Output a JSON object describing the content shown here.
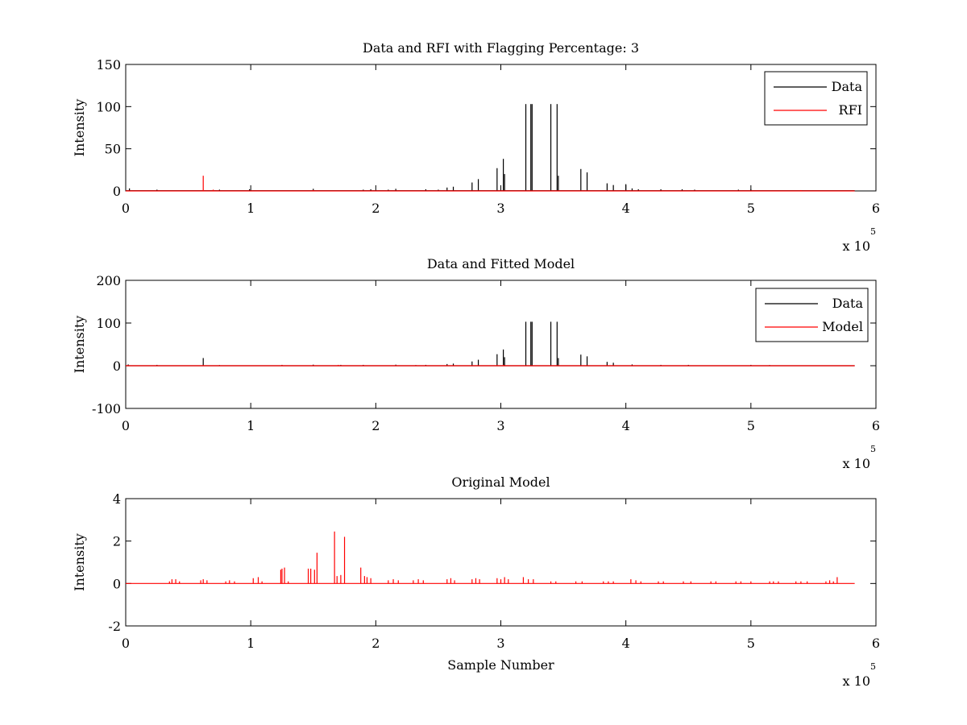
{
  "figure": {
    "background": "#ffffff"
  },
  "colors": {
    "data": "#000000",
    "rfi": "#ff0000",
    "model": "#ff0000"
  },
  "chart_data": [
    {
      "type": "line",
      "title": "Data and RFI with Flagging Percentage: 3",
      "xlabel": "",
      "ylabel": "Intensity",
      "xlim": [
        0,
        600000
      ],
      "ylim": [
        0,
        150
      ],
      "x_ticks": [
        0,
        1,
        2,
        3,
        4,
        5,
        6
      ],
      "y_ticks": [
        0,
        50,
        100,
        150
      ],
      "x_exponent_label": "x 10",
      "x_exponent_power": "5",
      "legend": {
        "position": "top-right",
        "entries": [
          "Data",
          "RFI"
        ]
      },
      "series": [
        {
          "name": "Data",
          "color": "#000000",
          "baseline": 0.3,
          "spikes": [
            [
              3000,
              3
            ],
            [
              25000,
              1.5
            ],
            [
              75000,
              1.5
            ],
            [
              99000,
              2
            ],
            [
              150000,
              2.5
            ],
            [
              190000,
              1.5
            ],
            [
              196000,
              2
            ],
            [
              210000,
              1.5
            ],
            [
              216000,
              2.5
            ],
            [
              240000,
              2
            ],
            [
              250000,
              1.5
            ],
            [
              257000,
              4
            ],
            [
              262000,
              5
            ],
            [
              277000,
              10
            ],
            [
              282000,
              14
            ],
            [
              297000,
              27
            ],
            [
              302000,
              38
            ],
            [
              303000,
              20
            ],
            [
              320000,
              103
            ],
            [
              324000,
              103
            ],
            [
              325000,
              103
            ],
            [
              340000,
              103
            ],
            [
              345000,
              103
            ],
            [
              346000,
              18
            ],
            [
              364000,
              26
            ],
            [
              369000,
              22
            ],
            [
              385000,
              9
            ],
            [
              390000,
              7
            ],
            [
              400000,
              8
            ],
            [
              405000,
              3
            ],
            [
              410000,
              2
            ],
            [
              428000,
              2
            ],
            [
              445000,
              2
            ],
            [
              455000,
              1.5
            ],
            [
              490000,
              1.5
            ],
            [
              500000,
              2
            ]
          ]
        },
        {
          "name": "RFI",
          "color": "#ff0000",
          "baseline": 0,
          "spikes": [
            [
              62000,
              18
            ],
            [
              70000,
              1.5
            ],
            [
              150000,
              1
            ],
            [
              540000,
              1
            ]
          ]
        }
      ]
    },
    {
      "type": "line",
      "title": "Data and Fitted Model",
      "xlabel": "",
      "ylabel": "Intensity",
      "xlim": [
        0,
        600000
      ],
      "ylim": [
        -100,
        200
      ],
      "x_ticks": [
        0,
        1,
        2,
        3,
        4,
        5,
        6
      ],
      "y_ticks": [
        -100,
        0,
        100,
        200
      ],
      "x_exponent_label": "x 10",
      "x_exponent_power": "5",
      "legend": {
        "position": "top-right",
        "entries": [
          "Data",
          "Model"
        ]
      },
      "series": [
        {
          "name": "Data",
          "color": "#000000",
          "baseline": 0,
          "spikes": [
            [
              2000,
              3
            ],
            [
              25000,
              2
            ],
            [
              62000,
              18
            ],
            [
              75000,
              1.5
            ],
            [
              125000,
              2
            ],
            [
              150000,
              2.5
            ],
            [
              172000,
              2
            ],
            [
              190000,
              2
            ],
            [
              216000,
              2.5
            ],
            [
              232000,
              1.5
            ],
            [
              240000,
              2
            ],
            [
              257000,
              4
            ],
            [
              262000,
              5
            ],
            [
              277000,
              10
            ],
            [
              282000,
              14
            ],
            [
              297000,
              27
            ],
            [
              302000,
              38
            ],
            [
              303000,
              20
            ],
            [
              320000,
              103
            ],
            [
              324000,
              103
            ],
            [
              325000,
              103
            ],
            [
              340000,
              103
            ],
            [
              345000,
              103
            ],
            [
              346000,
              18
            ],
            [
              364000,
              26
            ],
            [
              369000,
              22
            ],
            [
              385000,
              9
            ],
            [
              390000,
              7
            ],
            [
              405000,
              3
            ],
            [
              428000,
              2
            ],
            [
              450000,
              2
            ],
            [
              500000,
              2
            ],
            [
              515000,
              1.5
            ]
          ]
        },
        {
          "name": "Model",
          "color": "#ff0000",
          "baseline": 0,
          "spikes": [
            [
              62000,
              1.5
            ],
            [
              125000,
              1.5
            ],
            [
              170000,
              2
            ],
            [
              297000,
              1.5
            ],
            [
              302000,
              2
            ]
          ]
        }
      ]
    },
    {
      "type": "line",
      "title": "Original Model",
      "xlabel": "Sample Number",
      "ylabel": "Intensity",
      "xlim": [
        0,
        600000
      ],
      "ylim": [
        -2,
        4
      ],
      "x_ticks": [
        0,
        1,
        2,
        3,
        4,
        5,
        6
      ],
      "y_ticks": [
        -2,
        0,
        2,
        4
      ],
      "x_exponent_label": "x 10",
      "x_exponent_power": "5",
      "legend": null,
      "series": [
        {
          "name": "",
          "color": "#ff0000",
          "baseline": 0,
          "spikes": [
            [
              35000,
              0.1
            ],
            [
              37000,
              0.2
            ],
            [
              40000,
              0.2
            ],
            [
              43000,
              0.1
            ],
            [
              60000,
              0.15
            ],
            [
              62000,
              0.2
            ],
            [
              65000,
              0.15
            ],
            [
              80000,
              0.1
            ],
            [
              83000,
              0.15
            ],
            [
              87000,
              0.1
            ],
            [
              102000,
              0.25
            ],
            [
              106000,
              0.3
            ],
            [
              109000,
              0.1
            ],
            [
              124000,
              0.65
            ],
            [
              125000,
              0.7
            ],
            [
              127000,
              0.75
            ],
            [
              130000,
              0.1
            ],
            [
              146000,
              0.7
            ],
            [
              148000,
              0.7
            ],
            [
              151000,
              0.65
            ],
            [
              153000,
              1.45
            ],
            [
              167000,
              2.45
            ],
            [
              169000,
              0.35
            ],
            [
              172000,
              0.4
            ],
            [
              175000,
              2.2
            ],
            [
              188000,
              0.75
            ],
            [
              191000,
              0.35
            ],
            [
              193000,
              0.3
            ],
            [
              196000,
              0.25
            ],
            [
              210000,
              0.15
            ],
            [
              214000,
              0.2
            ],
            [
              218000,
              0.15
            ],
            [
              230000,
              0.15
            ],
            [
              234000,
              0.2
            ],
            [
              238000,
              0.15
            ],
            [
              257000,
              0.2
            ],
            [
              260000,
              0.25
            ],
            [
              263000,
              0.15
            ],
            [
              277000,
              0.2
            ],
            [
              280000,
              0.25
            ],
            [
              283000,
              0.2
            ],
            [
              297000,
              0.25
            ],
            [
              300000,
              0.2
            ],
            [
              303000,
              0.3
            ],
            [
              306000,
              0.2
            ],
            [
              318000,
              0.3
            ],
            [
              322000,
              0.2
            ],
            [
              326000,
              0.2
            ],
            [
              340000,
              0.1
            ],
            [
              344000,
              0.1
            ],
            [
              360000,
              0.1
            ],
            [
              365000,
              0.1
            ],
            [
              382000,
              0.1
            ],
            [
              386000,
              0.1
            ],
            [
              390000,
              0.1
            ],
            [
              404000,
              0.2
            ],
            [
              408000,
              0.15
            ],
            [
              412000,
              0.1
            ],
            [
              426000,
              0.1
            ],
            [
              430000,
              0.1
            ],
            [
              446000,
              0.1
            ],
            [
              452000,
              0.1
            ],
            [
              468000,
              0.1
            ],
            [
              472000,
              0.1
            ],
            [
              488000,
              0.1
            ],
            [
              492000,
              0.1
            ],
            [
              500000,
              0.1
            ],
            [
              515000,
              0.1
            ],
            [
              518000,
              0.1
            ],
            [
              522000,
              0.1
            ],
            [
              536000,
              0.1
            ],
            [
              540000,
              0.1
            ],
            [
              545000,
              0.1
            ],
            [
              560000,
              0.1
            ],
            [
              563000,
              0.15
            ],
            [
              566000,
              0.1
            ],
            [
              569000,
              0.3
            ]
          ]
        }
      ]
    }
  ]
}
